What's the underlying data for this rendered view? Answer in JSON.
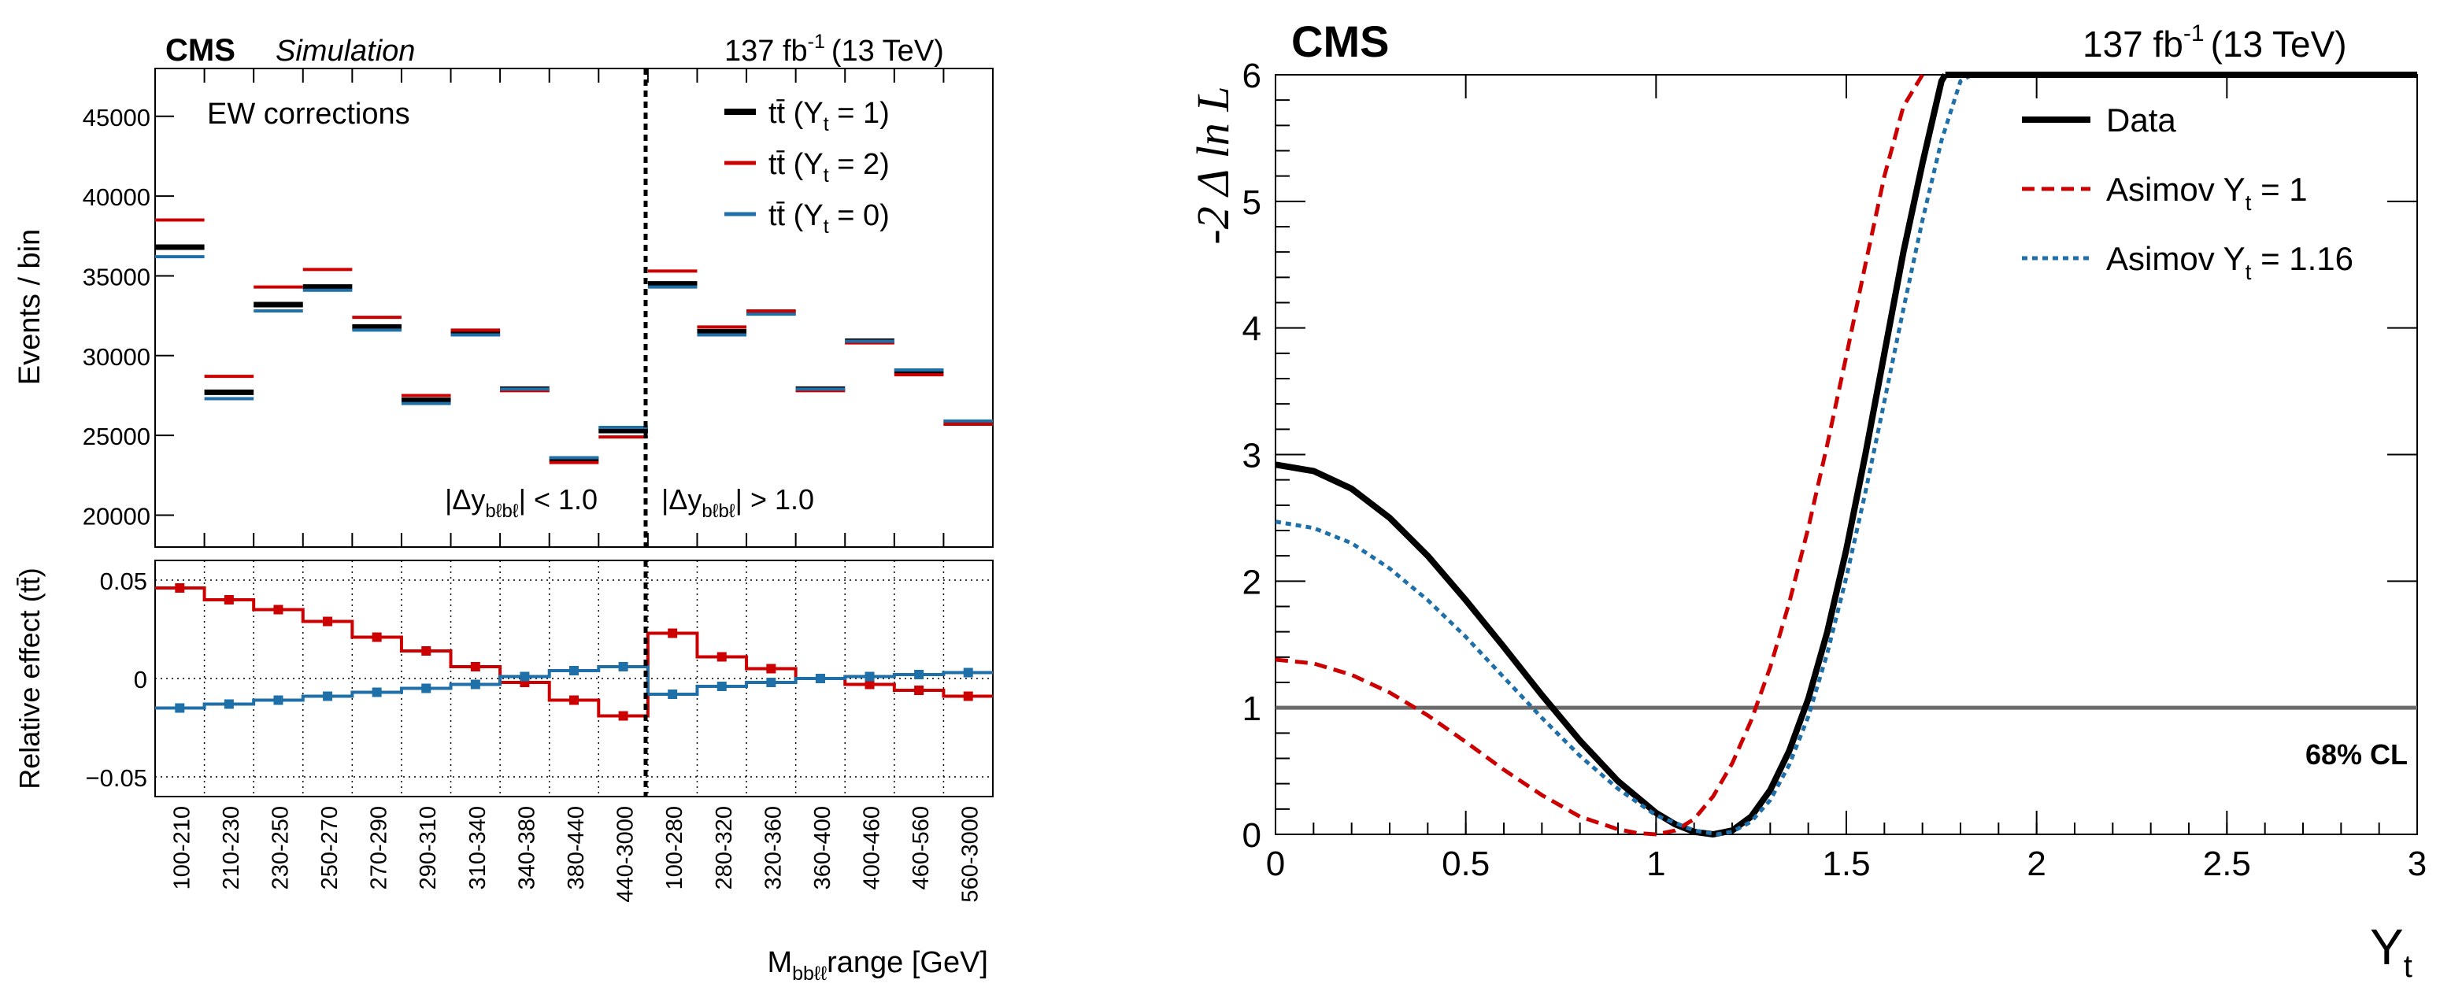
{
  "chart_data": [
    {
      "type": "step",
      "panel": "upper",
      "experiment": "CMS",
      "label": "Simulation",
      "lumi": "137 fb",
      "lumi_exp": "-1",
      "energy": "(13 TeV)",
      "annotation": "EW corrections",
      "ylabel": "Events / bin",
      "ylim": [
        18000,
        48000
      ],
      "yticks": [
        "20000",
        "25000",
        "30000",
        "35000",
        "40000",
        "45000"
      ],
      "ytick_values": [
        20000,
        25000,
        30000,
        35000,
        40000,
        45000
      ],
      "region_left": {
        "pre": "|Δy",
        "sub": "bℓbℓ",
        "post": "| < 1.0"
      },
      "region_right": {
        "pre": "|Δy",
        "sub": "bℓbℓ",
        "post": "| > 1.0"
      },
      "series": [
        {
          "name": "tt̄  (Y",
          "sub": "t",
          "suffix": " = 1)",
          "color": "#000000",
          "values": [
            36800,
            27700,
            33200,
            34300,
            31800,
            27200,
            31400,
            27900,
            23500,
            25300,
            34500,
            31500,
            32700,
            27900,
            30900,
            29000,
            25800
          ]
        },
        {
          "name": "tt̄  (Y",
          "sub": "t",
          "suffix": " = 2)",
          "color": "#cc0000",
          "values": [
            38500,
            28700,
            34300,
            35400,
            32400,
            27500,
            31600,
            27800,
            23300,
            24900,
            35300,
            31800,
            32800,
            27800,
            30800,
            28800,
            25700
          ]
        },
        {
          "name": "tt̄  (Y",
          "sub": "t",
          "suffix": " = 0)",
          "color": "#1f6fa8",
          "values": [
            36200,
            27300,
            32800,
            34100,
            31600,
            27000,
            31300,
            27900,
            23600,
            25500,
            34300,
            31300,
            32600,
            27900,
            30900,
            29100,
            25900
          ]
        }
      ]
    },
    {
      "type": "step",
      "panel": "ratio",
      "ylabel": "Relative effect (tt̄)",
      "xlabel": "M",
      "xlabel_sub": "bbℓℓ",
      "xlabel_post": "range [GeV]",
      "ylim": [
        -0.06,
        0.06
      ],
      "yticks": [
        "0.05",
        "0",
        "−0.05"
      ],
      "ytick_values": [
        0.05,
        0,
        -0.05
      ],
      "categories": [
        "100-210",
        "210-230",
        "230-250",
        "250-270",
        "270-290",
        "290-310",
        "310-340",
        "340-380",
        "380-440",
        "440-3000",
        "100-280",
        "280-320",
        "320-360",
        "360-400",
        "400-460",
        "460-560",
        "560-3000"
      ],
      "series": [
        {
          "name": "Y_t = 2",
          "color": "#cc0000",
          "values": [
            0.046,
            0.04,
            0.035,
            0.029,
            0.021,
            0.014,
            0.006,
            -0.002,
            -0.011,
            -0.019,
            0.023,
            0.011,
            0.005,
            0.0,
            -0.003,
            -0.006,
            -0.009
          ]
        },
        {
          "name": "Y_t = 0",
          "color": "#1f6fa8",
          "values": [
            -0.015,
            -0.013,
            -0.011,
            -0.009,
            -0.007,
            -0.005,
            -0.003,
            0.001,
            0.004,
            0.006,
            -0.008,
            -0.004,
            -0.002,
            0.0,
            0.001,
            0.002,
            0.003
          ]
        }
      ]
    },
    {
      "type": "line",
      "panel": "likelihood",
      "experiment": "CMS",
      "lumi": "137 fb",
      "lumi_exp": "-1",
      "energy": "(13 TeV)",
      "ylabel": "-2 Δ ln L",
      "xlabel": "Y",
      "xlabel_sub": "t",
      "xlim": [
        0,
        3
      ],
      "ylim": [
        0,
        6
      ],
      "xticks": [
        "0",
        "0.5",
        "1",
        "1.5",
        "2",
        "2.5",
        "3"
      ],
      "xtick_values": [
        0,
        0.5,
        1,
        1.5,
        2,
        2.5,
        3
      ],
      "yticks": [
        "0",
        "1",
        "2",
        "3",
        "4",
        "5",
        "6"
      ],
      "ytick_values": [
        0,
        1,
        2,
        3,
        4,
        5,
        6
      ],
      "cl_line": {
        "value": 1,
        "label": "68% CL"
      },
      "series": [
        {
          "name": "Data",
          "color": "#000000",
          "style": "solid",
          "x": [
            0,
            0.1,
            0.2,
            0.3,
            0.4,
            0.5,
            0.6,
            0.7,
            0.8,
            0.9,
            1.0,
            1.05,
            1.1,
            1.15,
            1.2,
            1.25,
            1.3,
            1.35,
            1.4,
            1.45,
            1.5,
            1.55,
            1.6,
            1.65,
            1.7,
            1.75,
            1.76
          ],
          "y": [
            2.92,
            2.87,
            2.73,
            2.5,
            2.2,
            1.85,
            1.48,
            1.1,
            0.74,
            0.42,
            0.17,
            0.08,
            0.02,
            0.0,
            0.03,
            0.14,
            0.35,
            0.66,
            1.07,
            1.6,
            2.25,
            3.0,
            3.8,
            4.6,
            5.3,
            5.95,
            6.0
          ]
        },
        {
          "name": "Asimov Y",
          "sub": "t",
          "suffix": " = 1",
          "color": "#cc0000",
          "style": "dashed",
          "x": [
            0,
            0.1,
            0.2,
            0.3,
            0.4,
            0.5,
            0.6,
            0.7,
            0.8,
            0.9,
            0.95,
            1.0,
            1.05,
            1.1,
            1.15,
            1.2,
            1.25,
            1.3,
            1.35,
            1.4,
            1.45,
            1.5,
            1.55,
            1.6,
            1.65,
            1.7
          ],
          "y": [
            1.38,
            1.35,
            1.26,
            1.12,
            0.94,
            0.73,
            0.51,
            0.31,
            0.14,
            0.04,
            0.01,
            0.0,
            0.03,
            0.12,
            0.3,
            0.56,
            0.9,
            1.32,
            1.83,
            2.42,
            3.08,
            3.78,
            4.5,
            5.2,
            5.75,
            6.0
          ]
        },
        {
          "name": "Asimov Y",
          "sub": "t",
          "suffix": " = 1.16",
          "color": "#1f6fa8",
          "style": "dotted",
          "x": [
            0,
            0.1,
            0.2,
            0.3,
            0.4,
            0.5,
            0.6,
            0.7,
            0.8,
            0.9,
            1.0,
            1.1,
            1.16,
            1.2,
            1.25,
            1.3,
            1.35,
            1.4,
            1.45,
            1.5,
            1.55,
            1.6,
            1.65,
            1.7,
            1.75,
            1.8,
            1.83
          ],
          "y": [
            2.47,
            2.42,
            2.3,
            2.1,
            1.85,
            1.56,
            1.24,
            0.92,
            0.62,
            0.36,
            0.15,
            0.03,
            0.0,
            0.02,
            0.1,
            0.27,
            0.55,
            0.93,
            1.43,
            2.03,
            2.7,
            3.42,
            4.15,
            4.85,
            5.48,
            5.95,
            6.0
          ]
        }
      ]
    }
  ]
}
